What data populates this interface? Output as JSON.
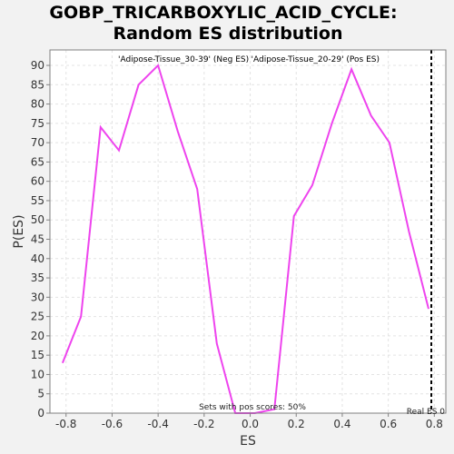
{
  "chart_data": {
    "type": "line",
    "title": [
      "GOBP_TRICARBOXYLIC_ACID_CYCLE:",
      "Random ES distribution"
    ],
    "xlabel": "ES",
    "ylabel": "P(ES)",
    "xlim": [
      -0.87,
      0.85
    ],
    "ylim": [
      0,
      94
    ],
    "xticks": [
      -0.8,
      -0.6,
      -0.4,
      -0.2,
      0.0,
      0.2,
      0.4,
      0.6,
      0.8
    ],
    "xtick_labels": [
      "-0.8",
      "-0.6",
      "-0.4",
      "-0.2",
      "0.0",
      "0.2",
      "0.4",
      "0.6",
      "0.8"
    ],
    "yticks": [
      0,
      5,
      10,
      15,
      20,
      25,
      30,
      35,
      40,
      45,
      50,
      55,
      60,
      65,
      70,
      75,
      80,
      85,
      90
    ],
    "grid": true,
    "series": [
      {
        "color": "#ee44ee",
        "x": [
          -0.815,
          -0.735,
          -0.65,
          -0.57,
          -0.485,
          -0.4,
          -0.315,
          -0.23,
          -0.145,
          -0.065,
          0.02,
          0.105,
          0.19,
          0.27,
          0.355,
          0.44,
          0.525,
          0.605,
          0.69,
          0.775
        ],
        "y": [
          13,
          25,
          74,
          68,
          85,
          90,
          73,
          58,
          18,
          0,
          0,
          1,
          51,
          59,
          75,
          89,
          77,
          70,
          47,
          27
        ]
      }
    ],
    "legend": {
      "neg_label": "'Adipose-Tissue_30-39' (Neg ES)",
      "neg_color": "#2222cc",
      "pos_label": "'Adipose-Tissue_20-29' (Pos ES)",
      "pos_color": "#dd2222"
    },
    "real_es": {
      "x": 0.787,
      "label": "Real ES 0"
    },
    "annotation": "Sets with pos scores: 50%"
  }
}
